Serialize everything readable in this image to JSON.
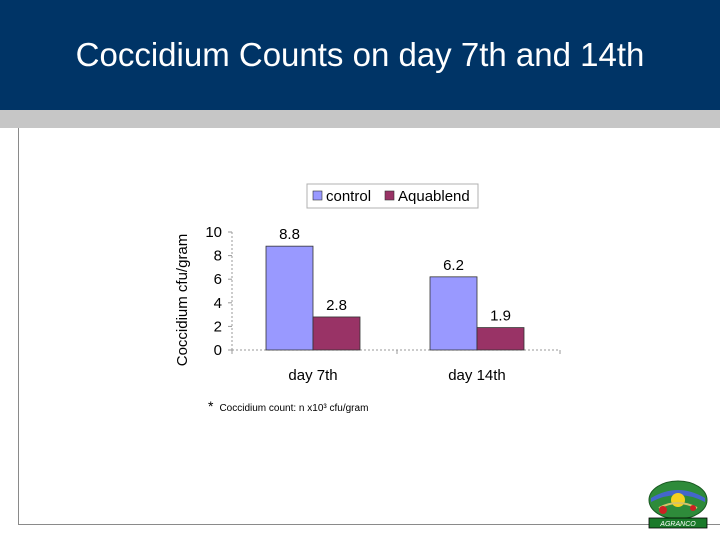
{
  "slide": {
    "title": "Coccidium Counts on day 7th and 14th",
    "footnote_marker": "*",
    "footnote": "Coccidium count: n x10³ cfu/gram",
    "logo_text": "AGRANCO"
  },
  "colors": {
    "title_bar": "#003466",
    "control": "#9999ff",
    "aquablend": "#993366"
  },
  "chart_data": {
    "type": "bar",
    "title": "",
    "xlabel": "",
    "ylabel": "Coccidium cfu/gram",
    "ylim": [
      0,
      10
    ],
    "yticks": [
      0,
      2,
      4,
      6,
      8,
      10
    ],
    "categories": [
      "day 7th",
      "day 14th"
    ],
    "series": [
      {
        "name": "control",
        "values": [
          8.8,
          6.2
        ]
      },
      {
        "name": "Aquablend",
        "values": [
          2.8,
          1.9
        ]
      }
    ],
    "data_labels": [
      [
        "8.8",
        "6.2"
      ],
      [
        "2.8",
        "1.9"
      ]
    ],
    "legend_position": "top"
  }
}
